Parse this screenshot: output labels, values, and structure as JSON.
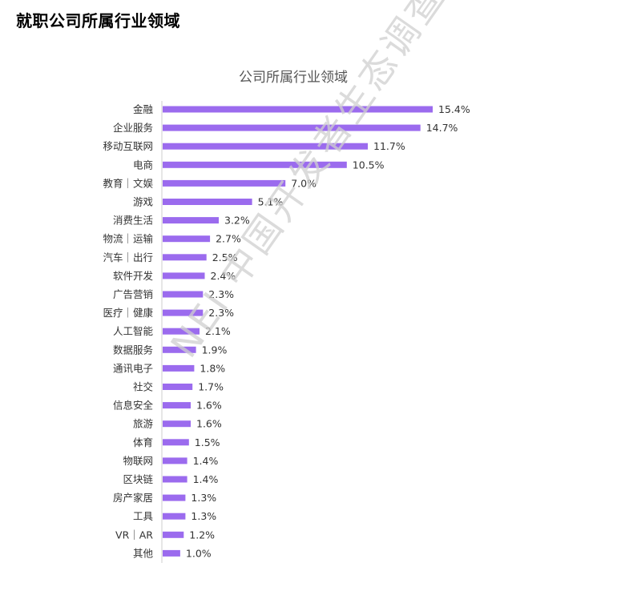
{
  "page": {
    "heading": "就职公司所属行业领域"
  },
  "watermark": {
    "text": "NEI 中国开发者生态调查报告"
  },
  "colors": {
    "bar": "#9B6BEE",
    "axis": "#cccccc",
    "text": "#333333",
    "title": "#555555"
  },
  "chart_data": {
    "type": "bar",
    "orientation": "horizontal",
    "title": "公司所属行业领域",
    "categories": [
      "金融",
      "企业服务",
      "移动互联网",
      "电商",
      "教育｜文娱",
      "游戏",
      "消费生活",
      "物流｜运输",
      "汽车｜出行",
      "软件开发",
      "广告营销",
      "医疗｜健康",
      "人工智能",
      "数据服务",
      "通讯电子",
      "社交",
      "信息安全",
      "旅游",
      "体育",
      "物联网",
      "区块链",
      "房产家居",
      "工具",
      "VR｜AR",
      "其他"
    ],
    "values": [
      15.4,
      14.7,
      11.7,
      10.5,
      7.0,
      5.1,
      3.2,
      2.7,
      2.5,
      2.4,
      2.3,
      2.3,
      2.1,
      1.9,
      1.8,
      1.7,
      1.6,
      1.6,
      1.5,
      1.4,
      1.4,
      1.3,
      1.3,
      1.2,
      1.0
    ],
    "labels": [
      "15.4%",
      "14.7%",
      "11.7%",
      "10.5%",
      "7.0%",
      "5.1%",
      "3.2%",
      "2.7%",
      "2.5%",
      "2.4%",
      "2.3%",
      "2.3%",
      "2.1%",
      "1.9%",
      "1.8%",
      "1.7%",
      "1.6%",
      "1.6%",
      "1.5%",
      "1.4%",
      "1.4%",
      "1.3%",
      "1.3%",
      "1.2%",
      "1.0%"
    ],
    "xlim": [
      0,
      15.4
    ],
    "grid": false,
    "legend": false
  }
}
